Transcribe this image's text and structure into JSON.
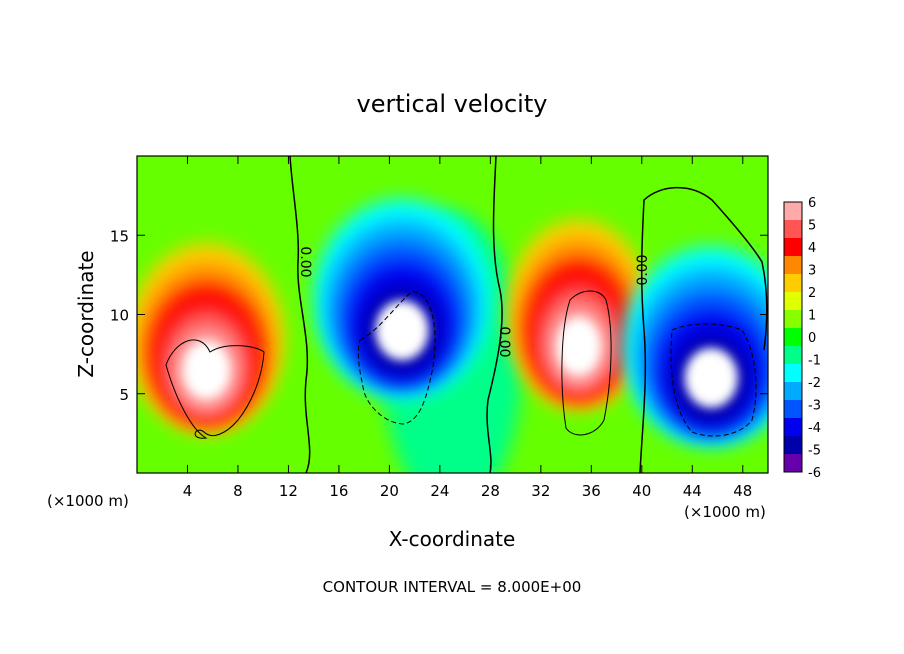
{
  "chart_data": {
    "type": "heatmap",
    "title": "vertical velocity",
    "xlabel": "X-coordinate",
    "ylabel": "Z-coordinate",
    "x_units_left": "(×1000 m)",
    "x_units_right": "(×1000 m)",
    "footer": "CONTOUR INTERVAL = 8.000E+00",
    "xlim": [
      0,
      50
    ],
    "ylim": [
      0,
      20
    ],
    "x_ticks": [
      4,
      8,
      12,
      16,
      20,
      24,
      28,
      32,
      36,
      40,
      44,
      48
    ],
    "y_ticks": [
      5,
      10,
      15
    ],
    "contour_labels": [
      "0.00",
      "0.00",
      "0.00"
    ],
    "colorbar": {
      "ticks": [
        "6",
        "5",
        "4",
        "3",
        "2",
        "1",
        "0",
        "-1",
        "-2",
        "-3",
        "-4",
        "-5",
        "-6"
      ],
      "colors": [
        "#ffaaaa",
        "#ff5555",
        "#ff0000",
        "#ff8800",
        "#ffcc00",
        "#e0ff00",
        "#88ff00",
        "#00ff00",
        "#00ff88",
        "#00ffff",
        "#00aaff",
        "#0055ff",
        "#0000ee",
        "#0000aa",
        "#6600aa"
      ]
    },
    "cells": [
      {
        "x": 5.5,
        "z": 6.5,
        "w": 2.8,
        "sign": "updraft",
        "peak": "> 6"
      },
      {
        "x": 21,
        "z": 9,
        "w": 3.2,
        "sign": "downdraft",
        "peak": "< -6"
      },
      {
        "x": 35,
        "z": 8,
        "w": 2.6,
        "sign": "updraft",
        "peak": "> 6"
      },
      {
        "x": 45.5,
        "z": 6,
        "w": 3.2,
        "sign": "downdraft",
        "peak": "< -6"
      }
    ]
  }
}
